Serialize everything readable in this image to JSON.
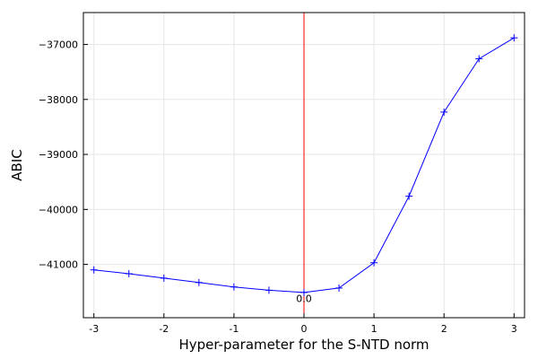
{
  "chart_data": {
    "type": "line",
    "title": "",
    "xlabel": "Hyper-parameter for the S-NTD norm",
    "ylabel": "ABIC",
    "xlim": [
      -3.15,
      3.15
    ],
    "ylim": [
      -41970,
      -36420
    ],
    "xticks": [
      -3,
      -2,
      -1,
      0,
      1,
      2,
      3
    ],
    "yticks": [
      -41000,
      -40000,
      -39000,
      -38000,
      -37000
    ],
    "ytick_labels": [
      "−41000",
      "−40000",
      "−39000",
      "−38000",
      "−37000"
    ],
    "grid": true,
    "legend": "none",
    "series": [
      {
        "color": "#0000ff",
        "marker": "+",
        "x": [
          -3.0,
          -2.5,
          -2.0,
          -1.5,
          -1.0,
          -0.5,
          0.0,
          0.5,
          1.0,
          1.5,
          2.0,
          2.5,
          3.0
        ],
        "y": [
          -41100,
          -41170,
          -41250,
          -41330,
          -41410,
          -41470,
          -41510,
          -41430,
          -40970,
          -39760,
          -38230,
          -37260,
          -36880
        ]
      }
    ],
    "vline": {
      "x": 0.0,
      "color": "#ff0000"
    },
    "annotations": [
      {
        "text": "0.0",
        "x": 0.0,
        "y": -41620
      }
    ]
  }
}
